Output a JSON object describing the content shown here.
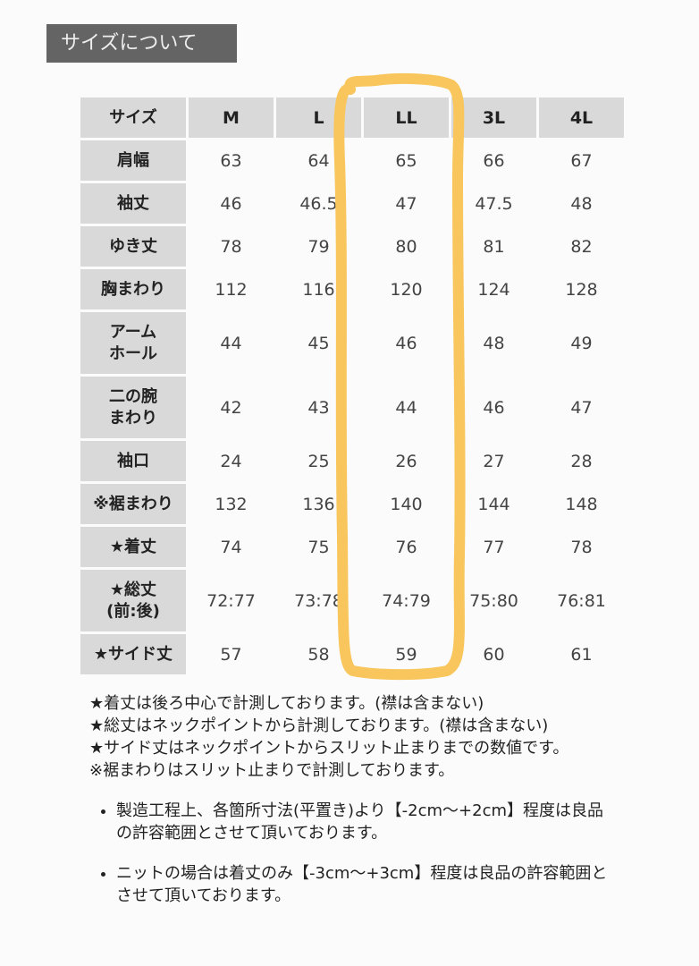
{
  "title": "サイズについて",
  "table": {
    "corner": "サイズ",
    "sizes": [
      "M",
      "L",
      "LL",
      "3L",
      "4L"
    ],
    "rows": [
      {
        "label": "肩幅",
        "values": [
          "63",
          "64",
          "65",
          "66",
          "67"
        ]
      },
      {
        "label": "袖丈",
        "values": [
          "46",
          "46.5",
          "47",
          "47.5",
          "48"
        ]
      },
      {
        "label": "ゆき丈",
        "values": [
          "78",
          "79",
          "80",
          "81",
          "82"
        ]
      },
      {
        "label": "胸まわり",
        "values": [
          "112",
          "116",
          "120",
          "124",
          "128"
        ]
      },
      {
        "label": "アーム\nホール",
        "values": [
          "44",
          "45",
          "46",
          "48",
          "49"
        ]
      },
      {
        "label": "二の腕\nまわり",
        "values": [
          "42",
          "43",
          "44",
          "46",
          "47"
        ]
      },
      {
        "label": "袖口",
        "values": [
          "24",
          "25",
          "26",
          "27",
          "28"
        ]
      },
      {
        "label": "※裾まわり",
        "values": [
          "132",
          "136",
          "140",
          "144",
          "148"
        ]
      },
      {
        "label": "★着丈",
        "values": [
          "74",
          "75",
          "76",
          "77",
          "78"
        ]
      },
      {
        "label": "★総丈\n(前:後)",
        "values": [
          "72:77",
          "73:78",
          "74:79",
          "75:80",
          "76:81"
        ]
      },
      {
        "label": "★サイド丈",
        "values": [
          "57",
          "58",
          "59",
          "60",
          "61"
        ]
      }
    ]
  },
  "highlight": {
    "column": "LL",
    "color": "#f8c65c"
  },
  "notes": [
    "★着丈は後ろ中心で計測しております。(襟は含まない)",
    "★総丈はネックポイントから計測しております。(襟は含まない)",
    "★サイド丈はネックポイントからスリット止まりまでの数値です。",
    "※裾まわりはスリット止まりで計測しております。"
  ],
  "bullets": [
    "製造工程上、各箇所寸法(平置き)より【-2cm～+2cm】程度は良品の許容範囲とさせて頂いております。",
    "ニットの場合は着丈のみ【-3cm～+3cm】程度は良品の許容範囲とさせて頂いております。"
  ]
}
